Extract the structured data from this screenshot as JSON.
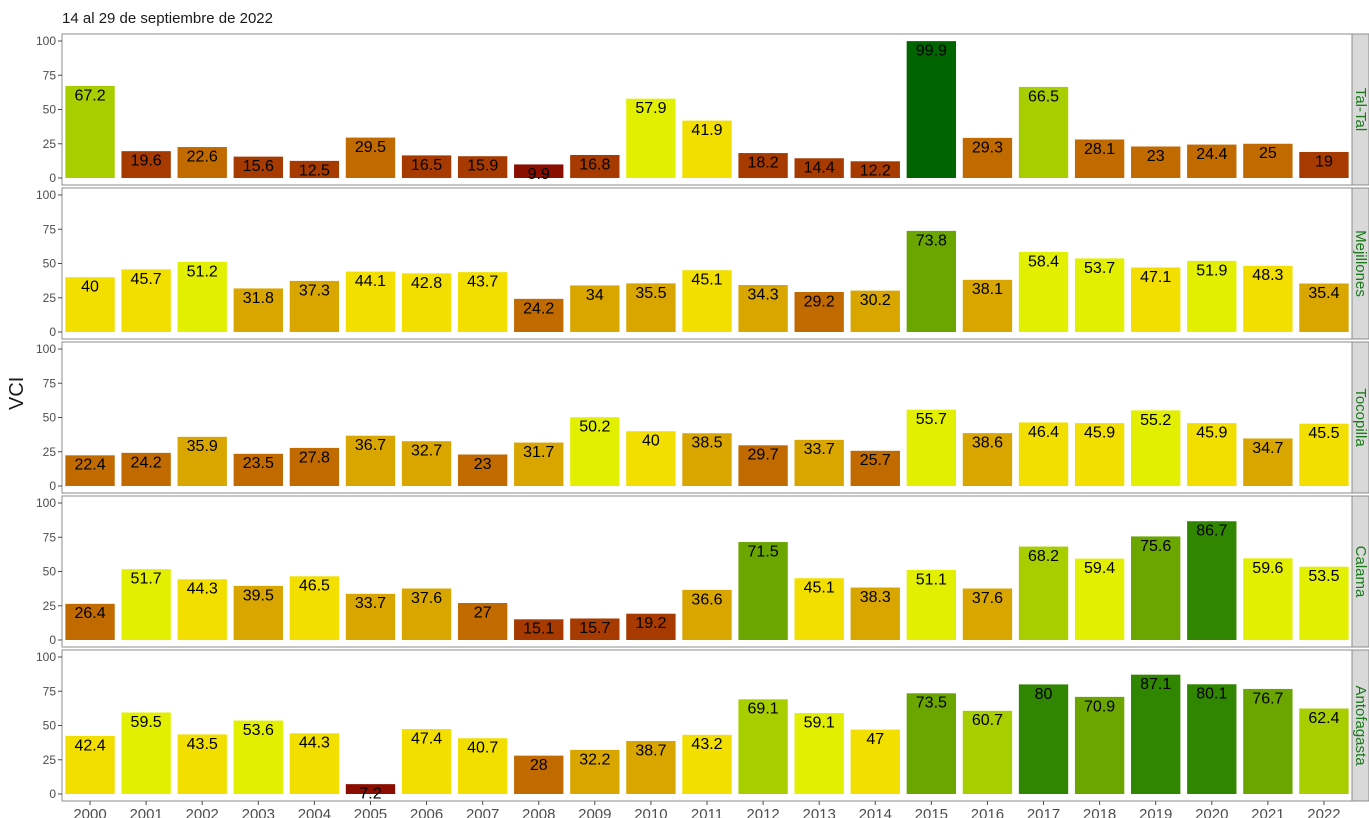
{
  "chart_data": {
    "type": "bar",
    "subtitle": "14 al 29 de septiembre de 2022",
    "ylabel": "VCI",
    "ylim": [
      0,
      100
    ],
    "yticks": [
      "0",
      "25",
      "50",
      "75",
      "100"
    ],
    "categories": [
      "2000",
      "2001",
      "2002",
      "2003",
      "2004",
      "2005",
      "2006",
      "2007",
      "2008",
      "2009",
      "2010",
      "2011",
      "2012",
      "2013",
      "2014",
      "2015",
      "2016",
      "2017",
      "2018",
      "2019",
      "2020",
      "2021",
      "2022"
    ],
    "panels": [
      {
        "name": "Tal-Tal",
        "values": [
          67.2,
          19.6,
          22.6,
          15.6,
          12.5,
          29.5,
          16.5,
          15.9,
          9.9,
          16.8,
          57.9,
          41.9,
          18.2,
          14.4,
          12.2,
          99.9,
          29.3,
          66.5,
          28.1,
          23,
          24.4,
          25,
          19
        ]
      },
      {
        "name": "Mejillones",
        "values": [
          40,
          45.7,
          51.2,
          31.8,
          37.3,
          44.1,
          42.8,
          43.7,
          24.2,
          34,
          35.5,
          45.1,
          34.3,
          29.2,
          30.2,
          73.8,
          38.1,
          58.4,
          53.7,
          47.1,
          51.9,
          48.3,
          35.4
        ]
      },
      {
        "name": "Tocopilla",
        "values": [
          22.4,
          24.2,
          35.9,
          23.5,
          27.8,
          36.7,
          32.7,
          23,
          31.7,
          50.2,
          40,
          38.5,
          29.7,
          33.7,
          25.7,
          55.7,
          38.6,
          46.4,
          45.9,
          55.2,
          45.9,
          34.7,
          45.5
        ]
      },
      {
        "name": "Calama",
        "values": [
          26.4,
          51.7,
          44.3,
          39.5,
          46.5,
          33.7,
          37.6,
          27,
          15.1,
          15.7,
          19.2,
          36.6,
          71.5,
          45.1,
          38.3,
          51.1,
          37.6,
          68.2,
          59.4,
          75.6,
          86.7,
          59.6,
          53.5
        ]
      },
      {
        "name": "Antofagasta",
        "values": [
          42.4,
          59.5,
          43.5,
          53.6,
          44.3,
          7.2,
          47.4,
          40.7,
          28,
          32.2,
          38.7,
          43.2,
          69.1,
          59.1,
          47,
          73.5,
          60.7,
          80,
          70.9,
          87.1,
          80.1,
          76.7,
          62.4
        ]
      }
    ],
    "color_scale": [
      {
        "min": 0,
        "max": 10,
        "color": "#8b0d00"
      },
      {
        "min": 10,
        "max": 20,
        "color": "#a63a00"
      },
      {
        "min": 20,
        "max": 30,
        "color": "#c06a00"
      },
      {
        "min": 30,
        "max": 40,
        "color": "#d9a600"
      },
      {
        "min": 40,
        "max": 50,
        "color": "#f2df00"
      },
      {
        "min": 50,
        "max": 60,
        "color": "#e3ef00"
      },
      {
        "min": 60,
        "max": 70,
        "color": "#a8ce00"
      },
      {
        "min": 70,
        "max": 80,
        "color": "#6aa500"
      },
      {
        "min": 80,
        "max": 90,
        "color": "#318600"
      },
      {
        "min": 90,
        "max": 100,
        "color": "#006400"
      }
    ],
    "grid": false,
    "strip_color": "#d9d9d9",
    "strip_text_color": "#1a7a1a"
  }
}
